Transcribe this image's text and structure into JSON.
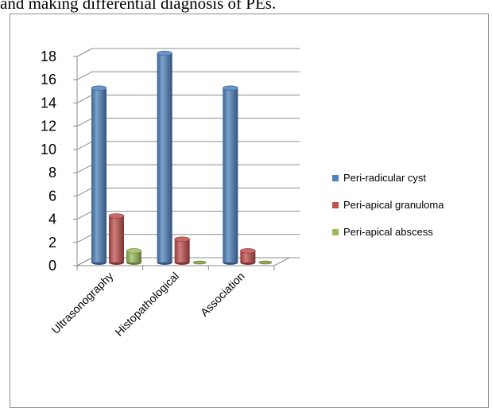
{
  "document": {
    "text_above": "and making differential diagnosis of PEs."
  },
  "chart_data": {
    "type": "bar",
    "categories": [
      "Ultrasonography",
      "Histopathological",
      "Association"
    ],
    "series": [
      {
        "name": "Peri-radicular cyst",
        "values": [
          15,
          18,
          15
        ],
        "color": "#4f81bd"
      },
      {
        "name": "Peri-apical granuloma",
        "values": [
          4,
          2,
          1
        ],
        "color": "#c0504d"
      },
      {
        "name": "Peri-apical abscess",
        "values": [
          1,
          0,
          0
        ],
        "color": "#9bbb59"
      }
    ],
    "ylim": [
      0,
      18
    ],
    "yticks": [
      "0",
      "2",
      "4",
      "6",
      "8",
      "10",
      "12",
      "14",
      "16",
      "18"
    ],
    "grid": true,
    "legend_position": "right",
    "style": "3d-cylinder"
  }
}
